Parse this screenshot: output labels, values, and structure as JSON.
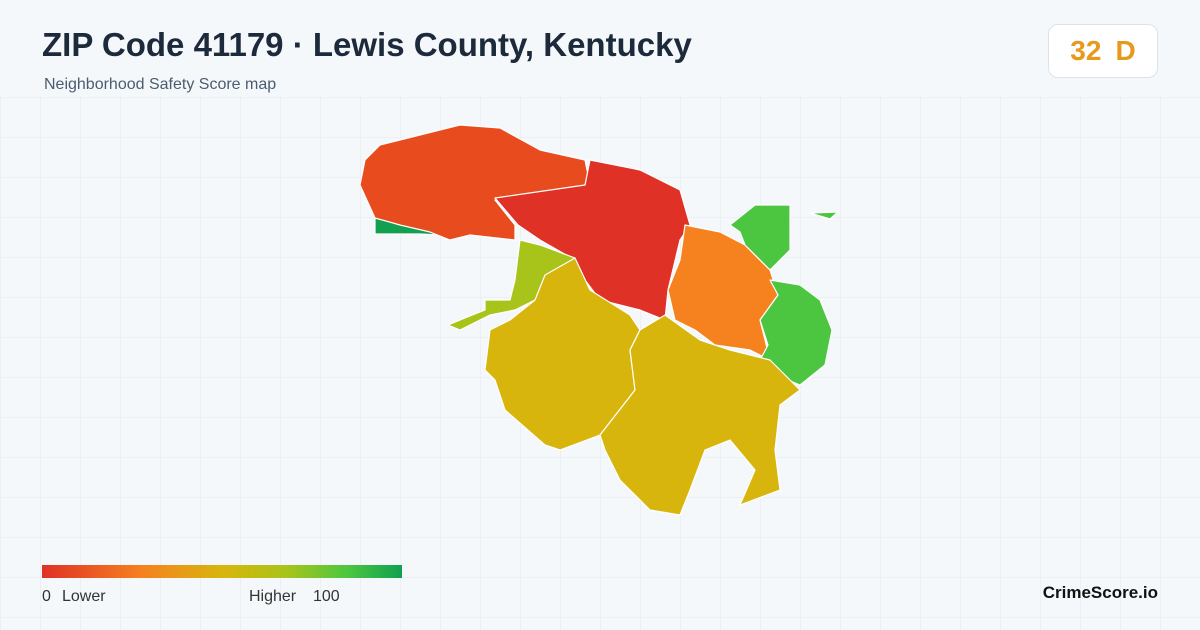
{
  "header": {
    "title": "ZIP Code 41179 · Lewis County, Kentucky",
    "subtitle": "Neighborhood Safety Score map"
  },
  "score": {
    "value": "32",
    "grade": "D"
  },
  "legend": {
    "min": "0",
    "min_label": "Lower",
    "max_label": "Higher",
    "max": "100"
  },
  "brand": "CrimeScore.io"
}
